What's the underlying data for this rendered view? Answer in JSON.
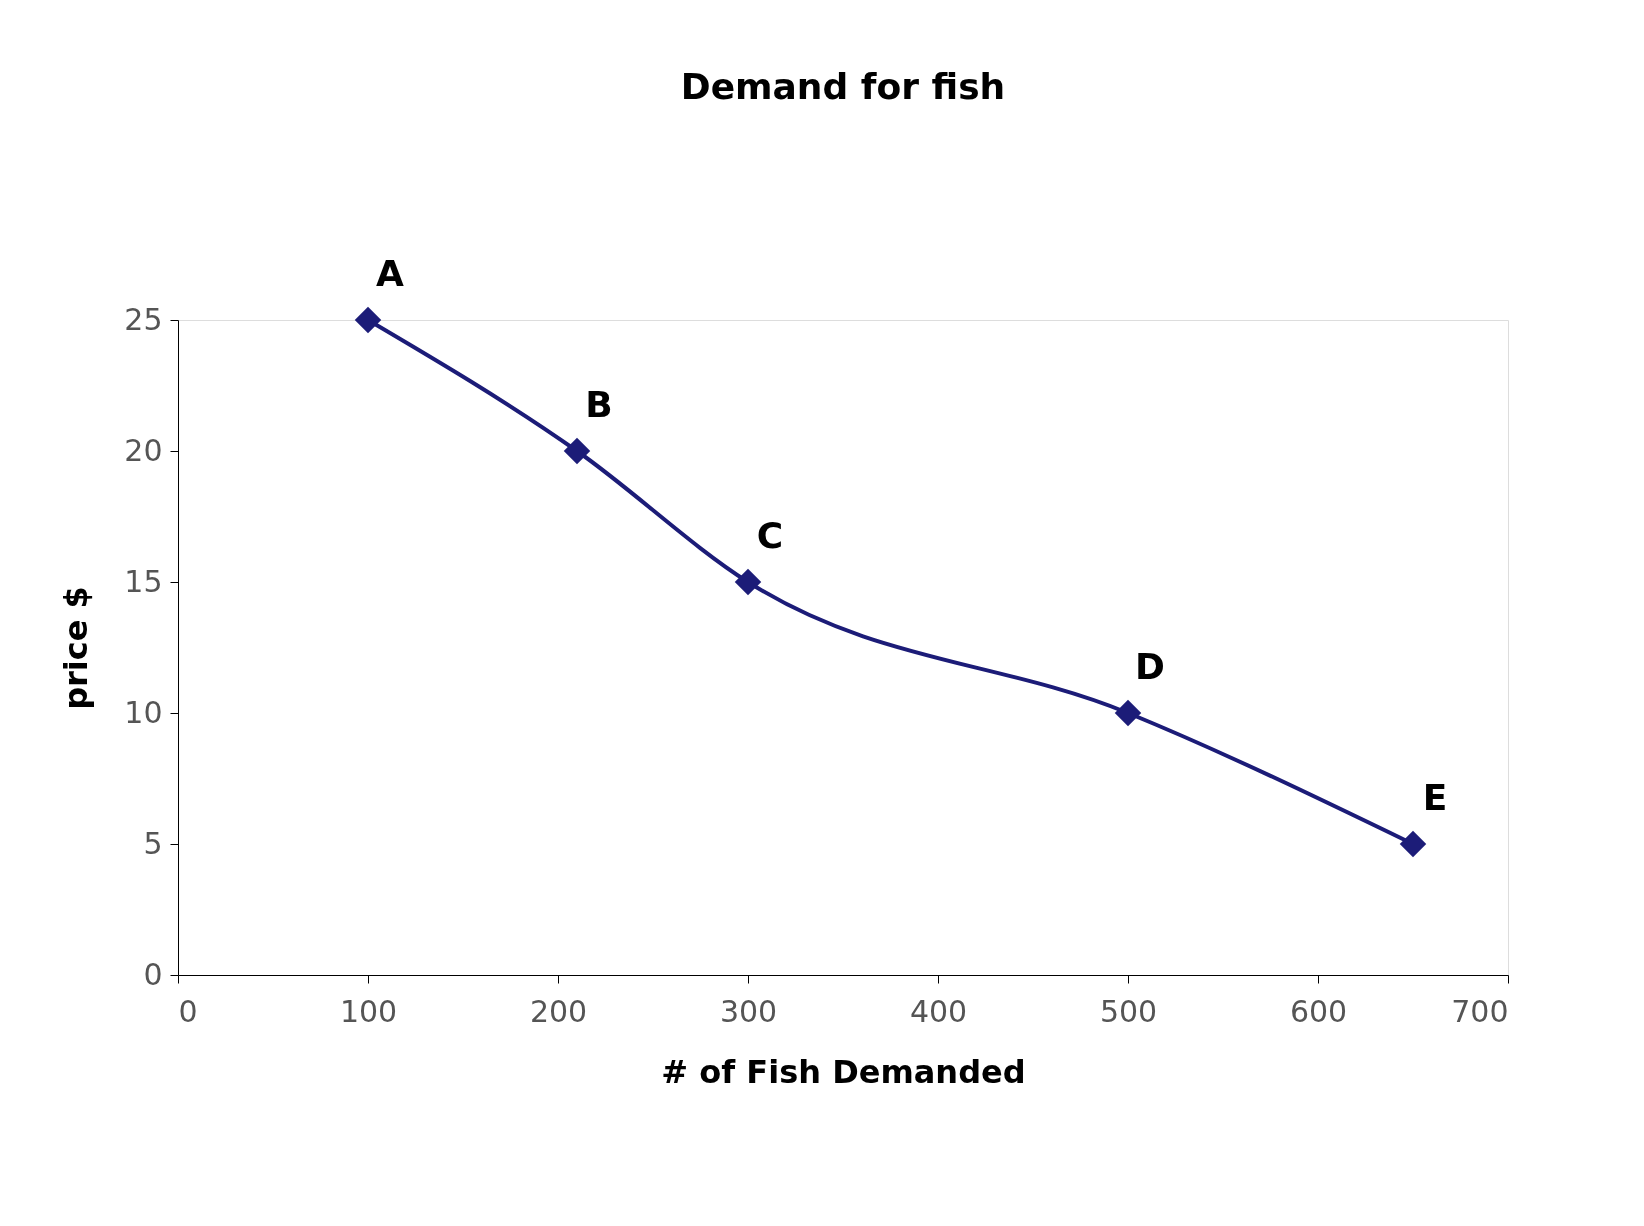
{
  "chart_data": {
    "type": "line",
    "title": "Demand for fish",
    "xlabel": "# of Fish Demanded",
    "ylabel": "price $",
    "x": [
      100,
      210,
      300,
      500,
      650
    ],
    "series": [
      {
        "color": "#1c1c78",
        "values": [
          25,
          20,
          15,
          10,
          5
        ]
      }
    ],
    "xlim": [
      0,
      700
    ],
    "xticks": [
      0,
      100,
      200,
      300,
      400,
      500,
      600,
      700
    ],
    "ylim": [
      0,
      25
    ],
    "yticks": [
      0,
      5,
      10,
      15,
      20,
      25
    ],
    "marker": "diamond",
    "line_style": "solid",
    "grid": false,
    "annotations": [
      {
        "text": "A",
        "x": 100,
        "y": 25
      },
      {
        "text": "B",
        "x": 210,
        "y": 20
      },
      {
        "text": "C",
        "x": 300,
        "y": 15
      },
      {
        "text": "D",
        "x": 500,
        "y": 10
      },
      {
        "text": "E",
        "x": 650,
        "y": 5
      }
    ]
  }
}
